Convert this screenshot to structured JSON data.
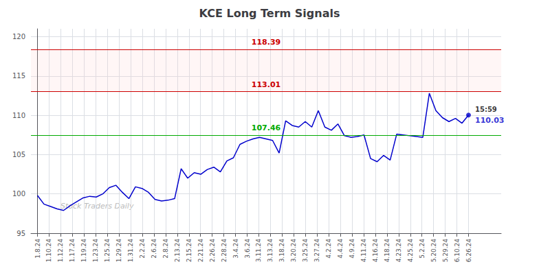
{
  "chart_data": {
    "type": "line",
    "title": "KCE Long Term Signals",
    "x": [
      0,
      1,
      2,
      3,
      4,
      5,
      6,
      7,
      8,
      9,
      10,
      11,
      12,
      13,
      14,
      15,
      16,
      17,
      18,
      19,
      20,
      21,
      22,
      23,
      24,
      25,
      26,
      27,
      28,
      29,
      30,
      31,
      32,
      33,
      34,
      35,
      36,
      37,
      38,
      39,
      40,
      41,
      42,
      43,
      44,
      45,
      46,
      47,
      48,
      49,
      50,
      51,
      52,
      53,
      54,
      55,
      56,
      57,
      58,
      59,
      60,
      61,
      62,
      63,
      64,
      65,
      66
    ],
    "values": [
      99.8,
      98.7,
      98.4,
      98.1,
      97.9,
      98.5,
      99.0,
      99.5,
      99.7,
      99.6,
      100.0,
      100.8,
      101.1,
      100.2,
      99.4,
      100.9,
      100.7,
      100.2,
      99.3,
      99.1,
      99.2,
      99.4,
      103.2,
      102.0,
      102.7,
      102.5,
      103.1,
      103.4,
      102.8,
      104.2,
      104.6,
      106.3,
      106.7,
      107.0,
      107.2,
      107.0,
      106.8,
      105.2,
      109.3,
      108.7,
      108.5,
      109.2,
      108.5,
      110.6,
      108.5,
      108.1,
      108.9,
      107.4,
      107.2,
      107.3,
      107.5,
      104.5,
      104.1,
      104.9,
      104.3,
      107.6,
      107.5,
      107.4,
      107.3,
      107.2,
      112.8,
      110.6,
      109.7,
      109.2,
      109.6,
      109.0,
      110.03
    ],
    "color": "#0000cc",
    "xlim": [
      -1,
      71
    ],
    "xticks": [
      {
        "value": 0,
        "label": "1.8.24"
      },
      {
        "value": 1.7837837838,
        "label": "1.10.24"
      },
      {
        "value": 3.5675675676,
        "label": "1.12.24"
      },
      {
        "value": 5.3513513514,
        "label": "1.17.24"
      },
      {
        "value": 7.1351351351,
        "label": "1.19.24"
      },
      {
        "value": 8.9189189189,
        "label": "1.23.24"
      },
      {
        "value": 10.7027027027,
        "label": "1.25.24"
      },
      {
        "value": 12.4864864865,
        "label": "1.29.24"
      },
      {
        "value": 14.2702702703,
        "label": "1.31.24"
      },
      {
        "value": 16.0540540541,
        "label": "2.2.24"
      },
      {
        "value": 17.8378378378,
        "label": "2.6.24"
      },
      {
        "value": 19.6216216216,
        "label": "2.8.24"
      },
      {
        "value": 21.4054054054,
        "label": "2.13.24"
      },
      {
        "value": 23.1891891892,
        "label": "2.15.24"
      },
      {
        "value": 24.972972973,
        "label": "2.21.24"
      },
      {
        "value": 26.7567567568,
        "label": "2.26.24"
      },
      {
        "value": 28.5405405405,
        "label": "2.28.24"
      },
      {
        "value": 30.3243243243,
        "label": "3.4.24"
      },
      {
        "value": 32.1081081081,
        "label": "3.6.24"
      },
      {
        "value": 33.8918918919,
        "label": "3.11.24"
      },
      {
        "value": 35.6756756757,
        "label": "3.13.24"
      },
      {
        "value": 37.4594594595,
        "label": "3.18.24"
      },
      {
        "value": 39.2432432432,
        "label": "3.20.24"
      },
      {
        "value": 41.027027027,
        "label": "3.25.24"
      },
      {
        "value": 42.8108108108,
        "label": "3.27.24"
      },
      {
        "value": 44.5945945946,
        "label": "4.2.24"
      },
      {
        "value": 46.3783783784,
        "label": "4.4.24"
      },
      {
        "value": 48.1621621622,
        "label": "4.9.24"
      },
      {
        "value": 49.9459459459,
        "label": "4.11.24"
      },
      {
        "value": 51.7297297297,
        "label": "4.16.24"
      },
      {
        "value": 53.5135135135,
        "label": "4.18.24"
      },
      {
        "value": 55.2972972973,
        "label": "4.23.24"
      },
      {
        "value": 57.0810810811,
        "label": "4.25.24"
      },
      {
        "value": 58.8648648649,
        "label": "5.2.24"
      },
      {
        "value": 60.6486486486,
        "label": "5.20.24"
      },
      {
        "value": 62.4324324324,
        "label": "5.29.24"
      },
      {
        "value": 64.2162162162,
        "label": "6.10.24"
      },
      {
        "value": 66,
        "label": "6.26.24"
      }
    ],
    "ylim": [
      95,
      121
    ],
    "yticks": [
      95,
      100,
      105,
      110,
      115,
      120
    ],
    "grid": true,
    "reference_lines": [
      {
        "value": 107.46,
        "label": "107.46",
        "color": "#00aa00"
      },
      {
        "value": 113.01,
        "label": "113.01",
        "color": "#cc0000"
      },
      {
        "value": 118.39,
        "label": "118.39",
        "color": "#cc0000"
      }
    ],
    "band": {
      "from": 113.01,
      "to": 118.39,
      "color": "#ffcccc"
    },
    "last_point": {
      "x": 66,
      "value": 110.03,
      "time_label": "15:59",
      "label": "110.03",
      "color": "#0000cc"
    },
    "watermark": {
      "text": "Stock Traders Daily",
      "color": "#bbbbbb"
    }
  }
}
